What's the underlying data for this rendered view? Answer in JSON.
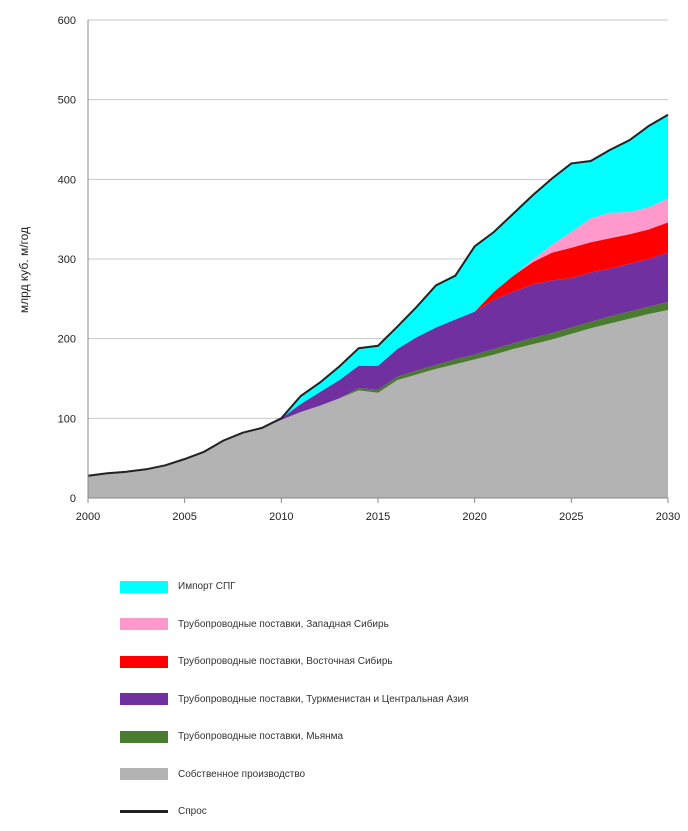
{
  "chart_data": {
    "type": "area",
    "ylabel": "млрд куб. м/год",
    "ylim": [
      0,
      600
    ],
    "xlim": [
      2000,
      2030
    ],
    "yticks": [
      "0",
      "100",
      "200",
      "300",
      "400",
      "500",
      "600"
    ],
    "xticks": [
      "2000",
      "2005",
      "2010",
      "2015",
      "2020",
      "2025",
      "2030"
    ],
    "grid": "horizontal",
    "legend_position": "bottom",
    "x": [
      2000,
      2001,
      2002,
      2003,
      2004,
      2005,
      2006,
      2007,
      2008,
      2009,
      2010,
      2011,
      2012,
      2013,
      2014,
      2015,
      2016,
      2017,
      2018,
      2019,
      2020,
      2021,
      2022,
      2023,
      2024,
      2025,
      2026,
      2027,
      2028,
      2029,
      2030
    ],
    "series": [
      {
        "name": "Собственное производство",
        "color": "#b3b3b3",
        "values": [
          28,
          31,
          33,
          36,
          41,
          49,
          58,
          72,
          82,
          88,
          98,
          108,
          116,
          125,
          135,
          132,
          148,
          155,
          162,
          168,
          174,
          180,
          187,
          193,
          199,
          206,
          213,
          219,
          225,
          231,
          236
        ]
      },
      {
        "name": "Трубопроводные поставки, Мьянма",
        "color": "#4a7c2e",
        "values": [
          0,
          0,
          0,
          0,
          0,
          0,
          0,
          0,
          0,
          0,
          0,
          0,
          0,
          0,
          3,
          4,
          4,
          5,
          5,
          6,
          6,
          7,
          7,
          8,
          8,
          8,
          8,
          9,
          9,
          9,
          10
        ]
      },
      {
        "name": "Трубопроводные поставки, Туркменистан и Центральная Азия",
        "color": "#7030a0",
        "values": [
          0,
          0,
          0,
          0,
          0,
          0,
          0,
          0,
          0,
          0,
          2,
          10,
          17,
          23,
          28,
          30,
          35,
          42,
          47,
          50,
          54,
          62,
          65,
          67,
          66,
          62,
          62,
          60,
          60,
          60,
          62
        ]
      },
      {
        "name": "Трубопроводные поставки, Восточная Сибирь",
        "color": "#ff0000",
        "values": [
          0,
          0,
          0,
          0,
          0,
          0,
          0,
          0,
          0,
          0,
          0,
          0,
          0,
          0,
          0,
          0,
          0,
          0,
          0,
          0,
          0,
          10,
          20,
          28,
          35,
          38,
          38,
          38,
          37,
          37,
          38
        ]
      },
      {
        "name": "Трубопроводные поставки, Западная Сибирь",
        "color": "#ff99cc",
        "values": [
          0,
          0,
          0,
          0,
          0,
          0,
          0,
          0,
          0,
          0,
          0,
          0,
          0,
          0,
          0,
          0,
          0,
          0,
          0,
          0,
          0,
          0,
          0,
          3,
          10,
          20,
          30,
          32,
          28,
          28,
          30
        ]
      },
      {
        "name": "Импорт СПГ",
        "color": "#00ffff",
        "values": [
          0,
          0,
          0,
          0,
          0,
          0,
          0,
          0,
          0,
          0,
          0,
          10,
          12,
          17,
          22,
          25,
          28,
          38,
          53,
          55,
          82,
          75,
          78,
          81,
          83,
          86,
          72,
          79,
          90,
          102,
          105
        ]
      }
    ],
    "line": {
      "name": "Спрос",
      "color": "#222222",
      "values": [
        28,
        31,
        33,
        36,
        41,
        49,
        58,
        72,
        82,
        88,
        100,
        128,
        145,
        165,
        188,
        191,
        215,
        240,
        267,
        279,
        316,
        334,
        357,
        380,
        401,
        420,
        423,
        437,
        449,
        467,
        481
      ]
    }
  }
}
